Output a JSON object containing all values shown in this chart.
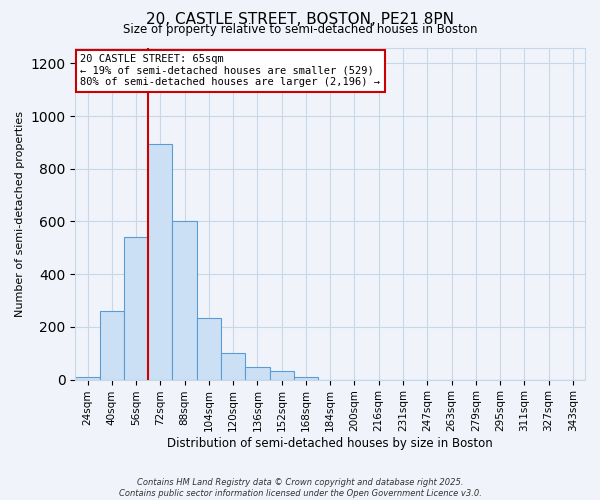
{
  "title1": "20, CASTLE STREET, BOSTON, PE21 8PN",
  "title2": "Size of property relative to semi-detached houses in Boston",
  "xlabel": "Distribution of semi-detached houses by size in Boston",
  "ylabel": "Number of semi-detached properties",
  "bar_labels": [
    "24sqm",
    "40sqm",
    "56sqm",
    "72sqm",
    "88sqm",
    "104sqm",
    "120sqm",
    "136sqm",
    "152sqm",
    "168sqm",
    "184sqm",
    "200sqm",
    "216sqm",
    "231sqm",
    "247sqm",
    "263sqm",
    "279sqm",
    "295sqm",
    "311sqm",
    "327sqm",
    "343sqm"
  ],
  "bar_values": [
    10,
    260,
    540,
    895,
    600,
    235,
    100,
    48,
    33,
    10,
    0,
    0,
    0,
    0,
    0,
    0,
    0,
    0,
    0,
    0,
    0
  ],
  "bar_color": "#cce0f5",
  "bar_edge_color": "#5b9bd5",
  "vline_x": 2.5,
  "vline_color": "#cc0000",
  "ylim": [
    0,
    1260
  ],
  "yticks": [
    0,
    200,
    400,
    600,
    800,
    1000,
    1200
  ],
  "annotation_title": "20 CASTLE STREET: 65sqm",
  "annotation_line1": "← 19% of semi-detached houses are smaller (529)",
  "annotation_line2": "80% of semi-detached houses are larger (2,196) →",
  "annotation_box_color": "#ffffff",
  "annotation_box_edge": "#cc0000",
  "footer1": "Contains HM Land Registry data © Crown copyright and database right 2025.",
  "footer2": "Contains public sector information licensed under the Open Government Licence v3.0.",
  "background_color": "#f0f4fa",
  "grid_color": "#c8d8ea"
}
